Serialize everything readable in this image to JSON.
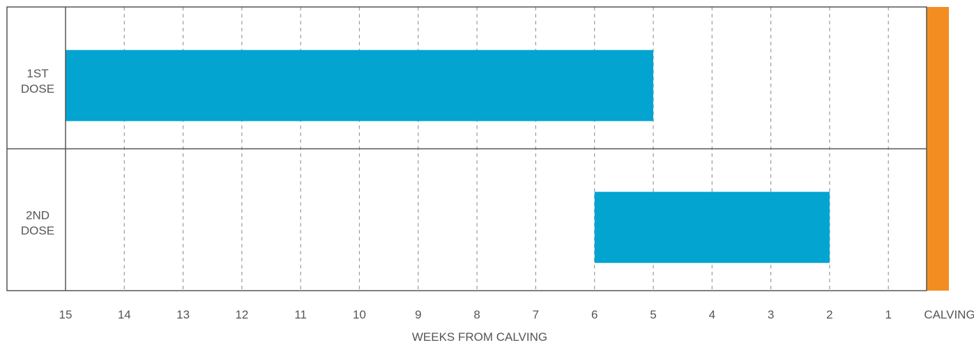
{
  "chart_data": {
    "type": "bar",
    "orientation": "horizontal",
    "xlabel": "WEEKS FROM CALVING",
    "x_ticks": [
      "15",
      "14",
      "13",
      "12",
      "11",
      "10",
      "9",
      "8",
      "7",
      "6",
      "5",
      "4",
      "3",
      "2",
      "1",
      "CALVING"
    ],
    "xlim": [
      15,
      0
    ],
    "grid": true,
    "categories": [
      "1ST DOSE",
      "2ND DOSE"
    ],
    "category_lines": [
      [
        "1ST",
        "DOSE"
      ],
      [
        "2ND",
        "DOSE"
      ]
    ],
    "series": [
      {
        "bars": [
          {
            "category": "1ST DOSE",
            "start_week": 15,
            "end_week": 5
          },
          {
            "category": "2ND DOSE",
            "start_week": 6,
            "end_week": 2
          }
        ]
      }
    ],
    "marker": {
      "label": "CALVING",
      "week": 0
    },
    "colors": {
      "bar": "#03a4d0",
      "calving": "#f38d22",
      "grid": "#9a9a9a",
      "frame": "#555555"
    }
  }
}
